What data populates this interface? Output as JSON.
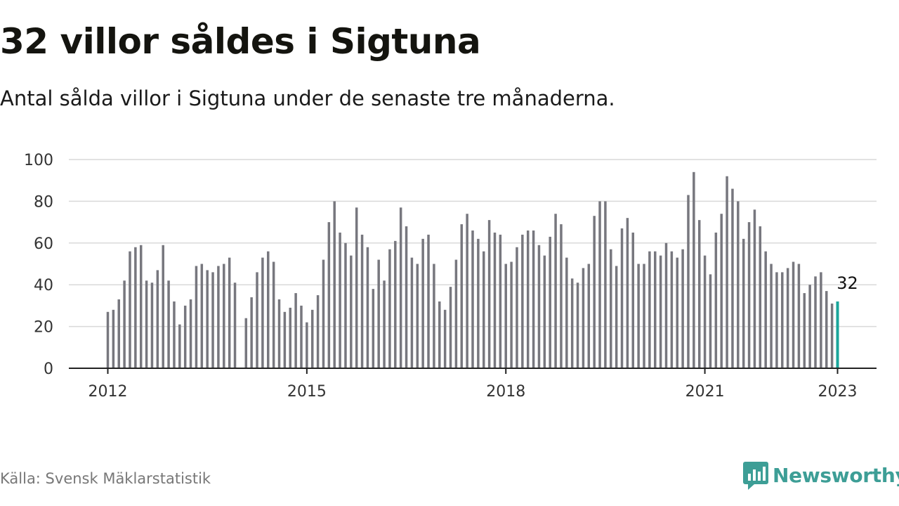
{
  "title": "32 villor såldes i Sigtuna",
  "subtitle": "Antal sålda villor i Sigtuna under de senaste tre månaderna.",
  "source": "Källa: Svensk Mäklarstatistik",
  "brand": {
    "name": "Newsworthy",
    "color": "#3d9e96",
    "icon": "newsworthy-logo-icon"
  },
  "colors": {
    "bar": "#77777e",
    "highlight": "#1aa59b",
    "grid": "#d9d9d9",
    "axis": "#222222"
  },
  "chart_data": {
    "type": "bar",
    "title": "",
    "xlabel": "",
    "ylabel": "",
    "ylim": [
      0,
      100
    ],
    "yticks": [
      0,
      20,
      40,
      60,
      80,
      100
    ],
    "xticks": [
      "2012",
      "2015",
      "2018",
      "2021",
      "2023"
    ],
    "grid": "horizontal",
    "x_start": "2012-01",
    "x_end": "2023-01",
    "values": [
      27,
      28,
      33,
      42,
      56,
      58,
      59,
      42,
      41,
      47,
      59,
      42,
      32,
      21,
      30,
      33,
      49,
      50,
      47,
      46,
      49,
      50,
      53,
      41,
      null,
      24,
      34,
      46,
      53,
      56,
      51,
      33,
      27,
      29,
      36,
      30,
      22,
      28,
      35,
      52,
      70,
      80,
      65,
      60,
      54,
      77,
      64,
      58,
      38,
      52,
      42,
      57,
      61,
      77,
      68,
      53,
      50,
      62,
      64,
      50,
      32,
      28,
      39,
      52,
      69,
      74,
      66,
      62,
      56,
      71,
      65,
      64,
      50,
      51,
      58,
      64,
      66,
      66,
      59,
      54,
      63,
      74,
      69,
      53,
      43,
      41,
      48,
      50,
      73,
      80,
      80,
      57,
      49,
      67,
      72,
      65,
      50,
      50,
      56,
      56,
      54,
      60,
      56,
      53,
      57,
      83,
      94,
      71,
      54,
      45,
      65,
      74,
      92,
      86,
      80,
      62,
      70,
      76,
      68,
      56,
      50,
      46,
      46,
      48,
      51,
      50,
      36,
      40,
      44,
      46,
      37,
      31,
      32
    ],
    "highlight_label": "32"
  }
}
